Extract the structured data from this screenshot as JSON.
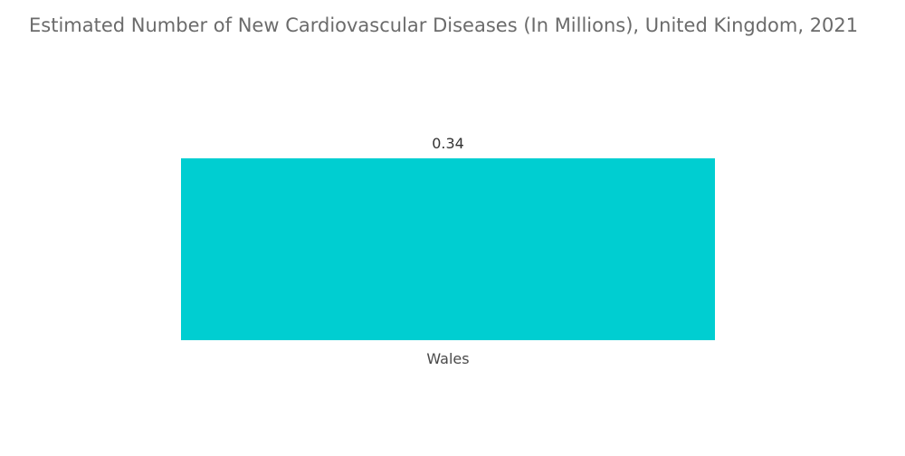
{
  "chart_data": {
    "type": "bar",
    "title": "Estimated Number of New Cardiovascular Diseases (In Millions), United Kingdom, 2021",
    "categories": [
      "Wales"
    ],
    "values": [
      0.34
    ],
    "value_labels": [
      "0.34"
    ],
    "xlabel": "",
    "ylabel": "",
    "ylim": [
      0,
      0.34
    ],
    "grid": false,
    "legend": "none",
    "colors": {
      "bar": "#00ced1",
      "title": "#6b6b6b"
    }
  }
}
